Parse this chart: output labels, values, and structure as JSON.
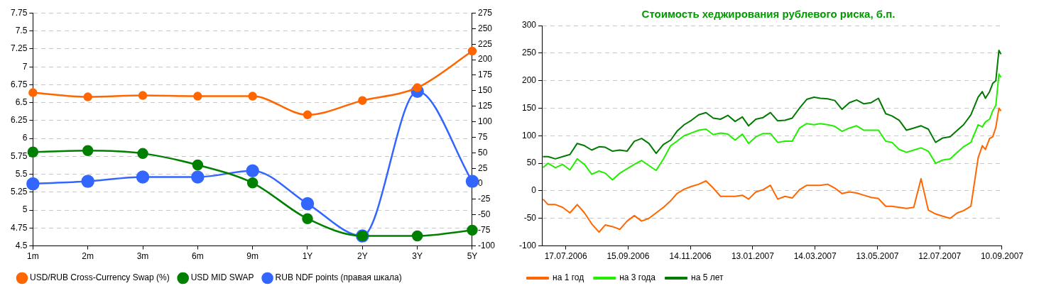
{
  "chart_data": [
    {
      "type": "line",
      "categories": [
        "1m",
        "2m",
        "3m",
        "6m",
        "9m",
        "1Y",
        "2Y",
        "3Y",
        "5Y"
      ],
      "series": [
        {
          "name": "USD/RUB Cross-Currency Swap (%)",
          "color": "#ff6600",
          "values": [
            6.64,
            6.58,
            6.6,
            6.59,
            6.59,
            6.33,
            6.53,
            6.71,
            7.22
          ]
        },
        {
          "name": "USD MID SWAP",
          "color": "#008000",
          "values": [
            5.81,
            5.83,
            5.79,
            5.63,
            5.38,
            4.88,
            4.64,
            4.64,
            4.72
          ]
        },
        {
          "name": "RUB NDF points (правая шкала)",
          "color": "#3366ff",
          "axis": "y2",
          "values": [
            0,
            4,
            11,
            11,
            21,
            -32,
            -84,
            149,
            4
          ]
        }
      ],
      "ylim": [
        4.5,
        7.75
      ],
      "yticks": [
        4.5,
        4.75,
        5,
        5.25,
        5.5,
        5.75,
        6,
        6.25,
        6.5,
        6.75,
        7,
        7.25,
        7.5,
        7.75
      ],
      "y2lim": [
        -100,
        275
      ],
      "y2ticks": [
        -100,
        -75,
        -50,
        -25,
        0,
        25,
        50,
        75,
        100,
        125,
        150,
        175,
        200,
        225,
        250,
        275
      ],
      "grid": "y",
      "legend": "bottom",
      "marker": "circle"
    },
    {
      "type": "line",
      "title": "Стоимость хеджирования рублевого риска, б.п.",
      "x": [
        "2006-06-25",
        "2006-06-30",
        "2006-07-07",
        "2006-07-14",
        "2006-07-21",
        "2006-07-28",
        "2006-08-04",
        "2006-08-11",
        "2006-08-18",
        "2006-08-24",
        "2006-08-31",
        "2006-09-07",
        "2006-09-14",
        "2006-09-21",
        "2006-09-28",
        "2006-10-05",
        "2006-10-12",
        "2006-10-19",
        "2006-10-26",
        "2006-11-01",
        "2006-11-08",
        "2006-11-15",
        "2006-11-22",
        "2006-11-29",
        "2006-12-06",
        "2006-12-13",
        "2006-12-20",
        "2006-12-27",
        "2007-01-03",
        "2007-01-09",
        "2007-01-16",
        "2007-01-23",
        "2007-01-30",
        "2007-02-06",
        "2007-02-13",
        "2007-02-20",
        "2007-02-27",
        "2007-03-06",
        "2007-03-13",
        "2007-03-19",
        "2007-03-26",
        "2007-04-02",
        "2007-04-09",
        "2007-04-16",
        "2007-04-23",
        "2007-04-30",
        "2007-05-07",
        "2007-05-14",
        "2007-05-21",
        "2007-05-27",
        "2007-06-03",
        "2007-06-10",
        "2007-06-17",
        "2007-06-24",
        "2007-07-01",
        "2007-07-08",
        "2007-07-15",
        "2007-07-22",
        "2007-07-29",
        "2007-08-04",
        "2007-08-11",
        "2007-08-18",
        "2007-08-22",
        "2007-08-25",
        "2007-08-29",
        "2007-09-01",
        "2007-09-04",
        "2007-09-07",
        "2007-09-09"
      ],
      "series": [
        {
          "name": "на 1 год",
          "color": "#ff6600",
          "values": [
            -15,
            -25,
            -25,
            -30,
            -40,
            -25,
            -40,
            -60,
            -75,
            -62,
            -65,
            -70,
            -55,
            -45,
            -55,
            -50,
            -40,
            -30,
            -18,
            -5,
            3,
            8,
            12,
            18,
            5,
            -10,
            -10,
            -10,
            -8,
            -15,
            -2,
            2,
            10,
            -15,
            -10,
            -13,
            2,
            10,
            10,
            10,
            12,
            5,
            -5,
            -2,
            -4,
            -8,
            -12,
            -14,
            -28,
            -28,
            -30,
            -32,
            -30,
            22,
            -35,
            -42,
            -46,
            -50,
            -40,
            -36,
            -28,
            60,
            82,
            75,
            95,
            98,
            115,
            150,
            145
          ]
        },
        {
          "name": "на 3 года",
          "color": "#22ee00",
          "values": [
            42,
            50,
            42,
            48,
            38,
            58,
            48,
            30,
            36,
            32,
            20,
            32,
            40,
            48,
            55,
            46,
            37,
            58,
            82,
            90,
            100,
            105,
            110,
            112,
            102,
            105,
            103,
            92,
            103,
            86,
            98,
            104,
            104,
            88,
            90,
            90,
            114,
            122,
            120,
            122,
            120,
            117,
            108,
            114,
            118,
            110,
            110,
            110,
            90,
            88,
            75,
            70,
            74,
            78,
            72,
            50,
            56,
            58,
            70,
            80,
            88,
            120,
            116,
            125,
            130,
            145,
            155,
            212,
            206
          ]
        },
        {
          "name": "на 5 лет",
          "color": "#007a00",
          "values": [
            62,
            62,
            58,
            62,
            66,
            86,
            82,
            74,
            80,
            79,
            72,
            74,
            72,
            90,
            95,
            86,
            68,
            84,
            92,
            108,
            120,
            128,
            138,
            142,
            132,
            130,
            137,
            126,
            134,
            118,
            130,
            133,
            142,
            127,
            128,
            132,
            150,
            166,
            170,
            168,
            167,
            164,
            148,
            160,
            165,
            158,
            160,
            168,
            140,
            136,
            128,
            110,
            114,
            118,
            112,
            88,
            96,
            98,
            110,
            120,
            138,
            170,
            180,
            168,
            180,
            195,
            200,
            255,
            248
          ]
        }
      ],
      "xlim": [
        "2006-06-24",
        "2007-09-10"
      ],
      "xticks": [
        {
          "value": "2006-07-17",
          "label": "17.07.2006"
        },
        {
          "value": "2006-09-15",
          "label": "15.09.2006"
        },
        {
          "value": "2006-11-14",
          "label": "14.11.2006"
        },
        {
          "value": "2007-01-13",
          "label": "13.01.2007"
        },
        {
          "value": "2007-03-14",
          "label": "14.03.2007"
        },
        {
          "value": "2007-05-13",
          "label": "13.05.2007"
        },
        {
          "value": "2007-07-12",
          "label": "12.07.2007"
        },
        {
          "value": "2007-09-10",
          "label": "10.09.2007"
        }
      ],
      "ylim": [
        -100,
        300
      ],
      "yticks": [
        -100,
        -50,
        0,
        50,
        100,
        150,
        200,
        250,
        300
      ],
      "grid": "y",
      "legend": "bottom",
      "marker": "none"
    }
  ]
}
